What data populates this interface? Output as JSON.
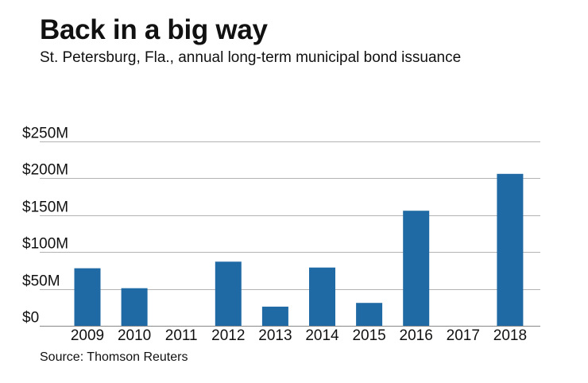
{
  "title": "Back in a big way",
  "subtitle": "St. Petersburg, Fla., annual long-term municipal bond issuance",
  "source": "Source: Thomson Reuters",
  "colors": {
    "bar": "#1f6aa5",
    "grid": "#b3b3b3",
    "axis": "#888888"
  },
  "chart_data": {
    "type": "bar",
    "title": "Back in a big way",
    "subtitle": "St. Petersburg, Fla., annual long-term municipal bond issuance",
    "xlabel": "",
    "ylabel": "",
    "unit": "millions of dollars",
    "categories": [
      "2009",
      "2010",
      "2011",
      "2012",
      "2013",
      "2014",
      "2015",
      "2016",
      "2017",
      "2018"
    ],
    "values": [
      78,
      51,
      0,
      87,
      26,
      79,
      31,
      156,
      0,
      206
    ],
    "ylim": [
      0,
      250
    ],
    "yticks": [
      0,
      50,
      100,
      150,
      200,
      250
    ],
    "ytick_labels": [
      "$0",
      "$50M",
      "$100M",
      "$150M",
      "$200M",
      "$250M"
    ],
    "grid": true,
    "legend": "none"
  }
}
